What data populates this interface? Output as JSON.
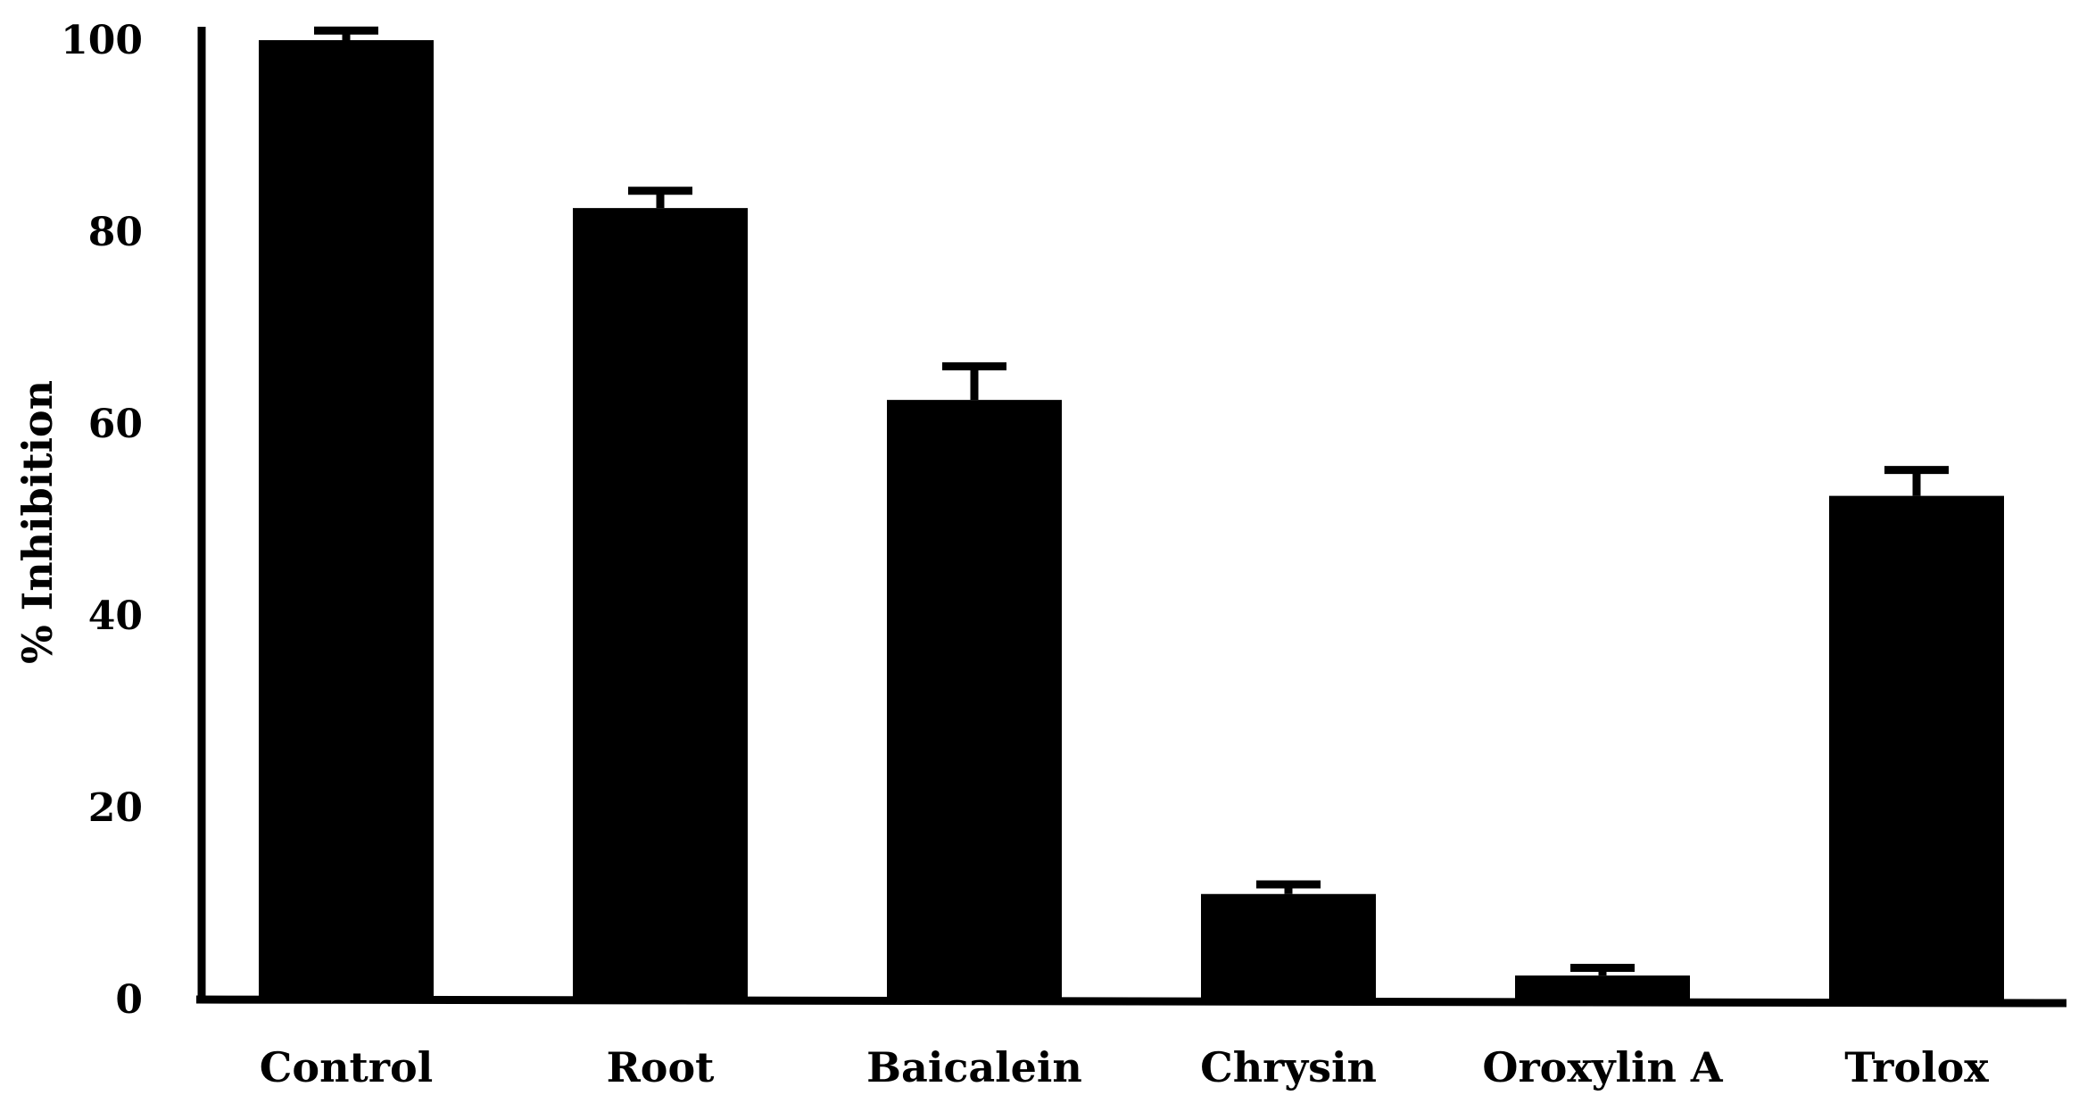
{
  "chart_data": {
    "type": "bar",
    "title": "",
    "xlabel": "",
    "ylabel": "% Inhibition",
    "ylim": [
      0,
      100
    ],
    "yticks": [
      "0",
      "20",
      "40",
      "60",
      "80",
      "100"
    ],
    "categories": [
      "Control",
      "Root",
      "Baicalein",
      "Chrysin",
      "Oroxylin A",
      "Trolox"
    ],
    "values": [
      100,
      82.5,
      62.5,
      11,
      2.5,
      52.5
    ],
    "errors": [
      1,
      1.8,
      3.5,
      1,
      0.8,
      2.7
    ],
    "bar_color": "#000000",
    "grid": false,
    "legend": "none"
  }
}
